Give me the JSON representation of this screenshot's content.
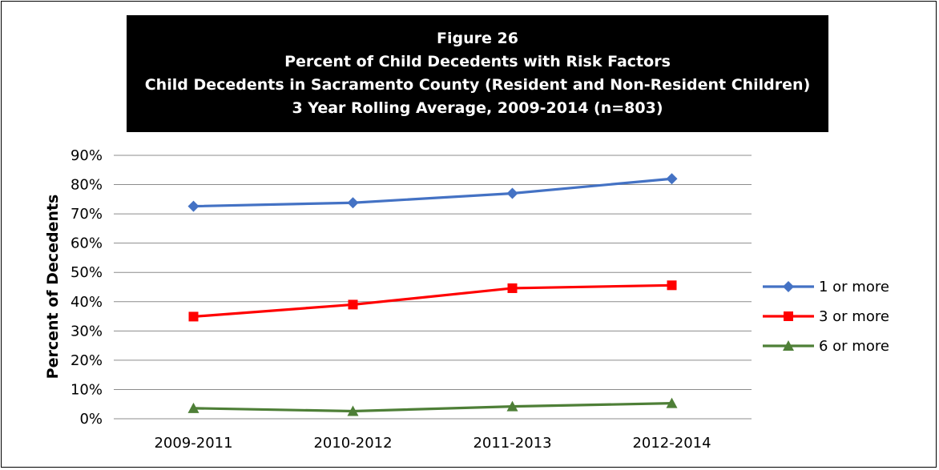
{
  "chart_data": {
    "type": "line",
    "title_lines": [
      "Figure 26",
      "Percent of Child Decedents with Risk Factors",
      "Child Decedents in Sacramento County (Resident and Non-Resident Children)",
      "3 Year Rolling Average, 2009-2014 (n=803)"
    ],
    "xlabel": "",
    "ylabel": "Percent of Decedents",
    "categories": [
      "2009-2011",
      "2010-2012",
      "2011-2013",
      "2012-2014"
    ],
    "ylim": [
      0,
      90
    ],
    "yticks": [
      0,
      10,
      20,
      30,
      40,
      50,
      60,
      70,
      80,
      90
    ],
    "ytick_labels": [
      "0%",
      "10%",
      "20%",
      "30%",
      "40%",
      "50%",
      "60%",
      "70%",
      "80%",
      "90%"
    ],
    "grid": true,
    "legend_position": "right",
    "series": [
      {
        "name": "1 or more",
        "values": [
          72.6,
          73.8,
          77.0,
          82.0
        ],
        "color": "#4472C4",
        "marker": "diamond"
      },
      {
        "name": "3 or more",
        "values": [
          34.9,
          39.0,
          44.6,
          45.6
        ],
        "color": "#FF0000",
        "marker": "square"
      },
      {
        "name": "6 or more",
        "values": [
          3.6,
          2.6,
          4.2,
          5.3
        ],
        "color": "#4E7F37",
        "marker": "triangle"
      }
    ]
  }
}
